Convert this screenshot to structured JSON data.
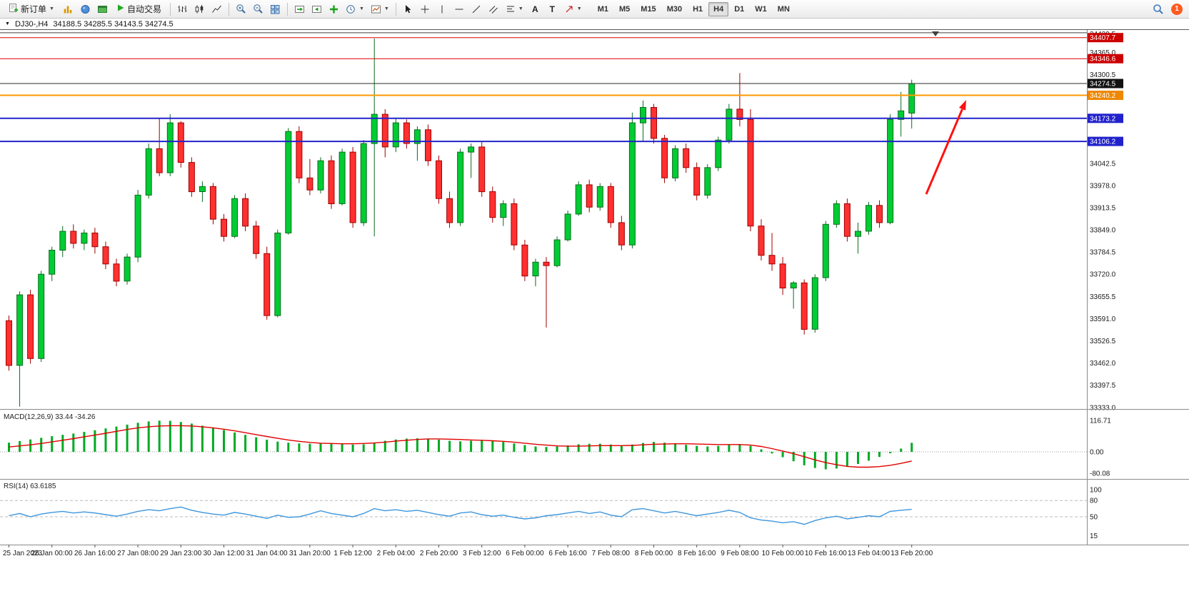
{
  "toolbar": {
    "new_order": "新订单",
    "auto_trading": "自动交易",
    "text_tool": "A",
    "label_tool": "T",
    "timeframes": [
      "M1",
      "M5",
      "M15",
      "M30",
      "H1",
      "H4",
      "D1",
      "W1",
      "MN"
    ],
    "active_timeframe": "H4",
    "notification_count": "1"
  },
  "chart_header": {
    "symbol": "DJ30-,H4",
    "ohlc": "34188.5 34285.5 34143.5 34274.5"
  },
  "chart_data": [
    {
      "type": "candlestick",
      "title": "DJ30-,H4",
      "ohlc_current": {
        "open": 34188.5,
        "high": 34285.5,
        "low": 34143.5,
        "close": 34274.5
      },
      "y_axis_labels": [
        "34429.5",
        "34365.0",
        "34300.5",
        "34236.0",
        "34171.5",
        "34107.0",
        "34042.5",
        "33978.0",
        "33913.5",
        "33849.0",
        "33784.5",
        "33720.0",
        "33655.5",
        "33591.0",
        "33526.5",
        "33462.0",
        "33397.5",
        "33333.0"
      ],
      "x_labels": [
        "25 Jan 2023",
        "26 Jan 00:00",
        "26 Jan 16:00",
        "27 Jan 08:00",
        "29 Jan 23:00",
        "30 Jan 12:00",
        "31 Jan 04:00",
        "31 Jan 20:00",
        "1 Feb 12:00",
        "2 Feb 04:00",
        "2 Feb 20:00",
        "3 Feb 12:00",
        "6 Feb 00:00",
        "6 Feb 16:00",
        "7 Feb 08:00",
        "8 Feb 00:00",
        "8 Feb 16:00",
        "9 Feb 08:00",
        "10 Feb 00:00",
        "10 Feb 16:00",
        "13 Feb 04:00",
        "13 Feb 20:00"
      ],
      "candles": [
        [
          33585,
          33600,
          33440,
          33455
        ],
        [
          33455,
          33670,
          33335,
          33660
        ],
        [
          33660,
          33675,
          33460,
          33475
        ],
        [
          33475,
          33730,
          33465,
          33720
        ],
        [
          33720,
          33800,
          33700,
          33790
        ],
        [
          33790,
          33860,
          33770,
          33845
        ],
        [
          33845,
          33865,
          33795,
          33810
        ],
        [
          33810,
          33850,
          33790,
          33840
        ],
        [
          33840,
          33855,
          33780,
          33800
        ],
        [
          33800,
          33815,
          33735,
          33750
        ],
        [
          33750,
          33765,
          33685,
          33700
        ],
        [
          33700,
          33780,
          33690,
          33770
        ],
        [
          33770,
          33965,
          33755,
          33950
        ],
        [
          33950,
          34100,
          33940,
          34085
        ],
        [
          34085,
          34175,
          34005,
          34015
        ],
        [
          34015,
          34185,
          34005,
          34160
        ],
        [
          34160,
          34165,
          34030,
          34045
        ],
        [
          34045,
          34060,
          33945,
          33960
        ],
        [
          33960,
          33990,
          33930,
          33975
        ],
        [
          33975,
          33985,
          33865,
          33880
        ],
        [
          33880,
          33895,
          33815,
          33830
        ],
        [
          33830,
          33950,
          33825,
          33940
        ],
        [
          33940,
          33955,
          33845,
          33860
        ],
        [
          33860,
          33875,
          33765,
          33780
        ],
        [
          33780,
          33800,
          33588,
          33600
        ],
        [
          33600,
          33850,
          33595,
          33840
        ],
        [
          33840,
          34145,
          33835,
          34135
        ],
        [
          34135,
          34150,
          33985,
          34000
        ],
        [
          34000,
          34055,
          33950,
          33965
        ],
        [
          33965,
          34060,
          33955,
          34050
        ],
        [
          34050,
          34065,
          33910,
          33925
        ],
        [
          33925,
          34085,
          33920,
          34075
        ],
        [
          34075,
          34090,
          33855,
          33870
        ],
        [
          33870,
          34110,
          33860,
          34100
        ],
        [
          34100,
          34405,
          33830,
          34185
        ],
        [
          34185,
          34200,
          34060,
          34090
        ],
        [
          34090,
          34175,
          34075,
          34160
        ],
        [
          34160,
          34170,
          34085,
          34100
        ],
        [
          34100,
          34150,
          34050,
          34140
        ],
        [
          34140,
          34155,
          34035,
          34050
        ],
        [
          34050,
          34065,
          33925,
          33940
        ],
        [
          33940,
          33960,
          33855,
          33870
        ],
        [
          33870,
          34085,
          33860,
          34075
        ],
        [
          34075,
          34100,
          34000,
          34090
        ],
        [
          34090,
          34105,
          33945,
          33960
        ],
        [
          33960,
          33975,
          33870,
          33885
        ],
        [
          33885,
          33935,
          33860,
          33925
        ],
        [
          33925,
          33940,
          33790,
          33805
        ],
        [
          33805,
          33820,
          33700,
          33715
        ],
        [
          33715,
          33765,
          33685,
          33755
        ],
        [
          33755,
          33770,
          33565,
          33745
        ],
        [
          33745,
          33830,
          33740,
          33820
        ],
        [
          33820,
          33905,
          33815,
          33895
        ],
        [
          33895,
          33990,
          33890,
          33980
        ],
        [
          33980,
          33995,
          33900,
          33915
        ],
        [
          33915,
          33985,
          33905,
          33975
        ],
        [
          33975,
          33985,
          33855,
          33870
        ],
        [
          33870,
          33890,
          33790,
          33805
        ],
        [
          33805,
          34190,
          33795,
          34160
        ],
        [
          34160,
          34225,
          34105,
          34205
        ],
        [
          34205,
          34215,
          34100,
          34115
        ],
        [
          34115,
          34125,
          33985,
          34000
        ],
        [
          34000,
          34095,
          33990,
          34085
        ],
        [
          34085,
          34100,
          34015,
          34030
        ],
        [
          34030,
          34045,
          33935,
          33950
        ],
        [
          33950,
          34040,
          33940,
          34030
        ],
        [
          34030,
          34120,
          34020,
          34110
        ],
        [
          34110,
          34215,
          34100,
          34200
        ],
        [
          34200,
          34305,
          34150,
          34170
        ],
        [
          34170,
          34200,
          33845,
          33860
        ],
        [
          33860,
          33880,
          33760,
          33775
        ],
        [
          33775,
          33840,
          33730,
          33750
        ],
        [
          33750,
          33770,
          33660,
          33680
        ],
        [
          33680,
          33700,
          33620,
          33695
        ],
        [
          33695,
          33705,
          33545,
          33560
        ],
        [
          33560,
          33720,
          33550,
          33710
        ],
        [
          33710,
          33875,
          33700,
          33865
        ],
        [
          33865,
          33935,
          33855,
          33925
        ],
        [
          33925,
          33940,
          33815,
          33830
        ],
        [
          33830,
          33870,
          33780,
          33845
        ],
        [
          33845,
          33930,
          33835,
          33920
        ],
        [
          33920,
          33935,
          33855,
          33870
        ],
        [
          33870,
          34185,
          33865,
          34170
        ],
        [
          34170,
          34250,
          34120,
          34195
        ],
        [
          34188.5,
          34285.5,
          34143.5,
          34274.5
        ]
      ],
      "levels": [
        {
          "price": 34422.0,
          "color": "#404040",
          "width": 1,
          "label": null,
          "tag_bg": null
        },
        {
          "price": 34407.7,
          "color": "#DD0000",
          "width": 1,
          "label": "34407.7",
          "tag_bg": "#CC0000"
        },
        {
          "price": 34346.6,
          "color": "#DD0000",
          "width": 1,
          "label": "34346.6",
          "tag_bg": "#CC0000"
        },
        {
          "price": 34274.5,
          "color": "#2b2b2b",
          "width": 1,
          "label": "34274.5",
          "tag_bg": "#111111"
        },
        {
          "price": 34240.2,
          "color": "#FF9900",
          "width": 2,
          "label": "34240.2",
          "tag_bg": "#EE8800"
        },
        {
          "price": 34173.2,
          "color": "#2222CC",
          "width": 2,
          "label": "34173.2",
          "tag_bg": "#2222CC"
        },
        {
          "price": 34106.2,
          "color": "#2222CC",
          "width": 2,
          "label": "34106.2",
          "tag_bg": "#2222CC"
        }
      ],
      "arrow": {
        "from": [
          1297,
          272
        ],
        "to": [
          1353,
          140
        ],
        "color": "#FF1111",
        "width": 3
      },
      "colors": {
        "up": "#00CC33",
        "up_border": "#0B6B1F",
        "down": "#FF3030",
        "down_border": "#A00000"
      }
    },
    {
      "type": "bar+line",
      "name": "MACD",
      "label": "MACD(12,26,9) 33.44 -34.26",
      "y_labels": [
        "116.71",
        "0.00",
        "-80.08"
      ],
      "histogram": [
        34,
        40,
        46,
        52,
        58,
        63,
        68,
        74,
        80,
        87,
        94,
        101,
        108,
        113,
        116,
        115,
        111,
        105,
        97,
        89,
        81,
        72,
        63,
        54,
        45,
        38,
        34,
        31,
        30,
        31,
        32,
        30,
        27,
        28,
        34,
        41,
        46,
        49,
        50,
        48,
        45,
        41,
        39,
        41,
        43,
        41,
        37,
        31,
        25,
        20,
        18,
        20,
        24,
        28,
        30,
        30,
        27,
        23,
        27,
        33,
        37,
        34,
        30,
        26,
        22,
        20,
        22,
        27,
        29,
        22,
        9,
        -6,
        -20,
        -35,
        -50,
        -60,
        -65,
        -62,
        -55,
        -45,
        -33,
        -19,
        -5,
        12,
        33.44
      ],
      "signal": [
        18,
        22,
        26,
        31,
        37,
        43,
        49,
        56,
        62,
        69,
        76,
        83,
        89,
        93,
        96,
        97,
        97,
        96,
        93,
        89,
        84,
        78,
        71,
        64,
        57,
        50,
        44,
        39,
        35,
        32,
        31,
        30,
        30,
        31,
        33,
        36,
        40,
        43,
        46,
        48,
        48,
        47,
        46,
        44,
        43,
        41,
        39,
        36,
        32,
        28,
        25,
        22,
        21,
        21,
        22,
        23,
        23,
        23,
        24,
        26,
        28,
        29,
        30,
        30,
        29,
        28,
        27,
        27,
        27,
        25,
        20,
        12,
        3,
        -7,
        -18,
        -30,
        -40,
        -48,
        -54,
        -57,
        -57,
        -55,
        -50,
        -43,
        -34.26
      ],
      "colors": {
        "histogram": "#00AA22",
        "signal": "#E00000"
      }
    },
    {
      "type": "line",
      "name": "RSI",
      "label": "RSI(14) 63.6185",
      "y_labels": [
        "100",
        "80",
        "50",
        "15"
      ],
      "levels": [
        80,
        50
      ],
      "values": [
        52,
        56,
        50,
        55,
        58,
        60,
        57,
        59,
        57,
        54,
        51,
        55,
        60,
        63,
        61,
        65,
        68,
        62,
        58,
        55,
        53,
        58,
        55,
        51,
        47,
        53,
        49,
        50,
        55,
        61,
        56,
        53,
        50,
        56,
        65,
        61,
        63,
        60,
        62,
        58,
        54,
        51,
        57,
        59,
        54,
        51,
        53,
        49,
        46,
        48,
        52,
        54,
        57,
        60,
        56,
        59,
        53,
        50,
        63,
        65,
        61,
        57,
        60,
        56,
        52,
        55,
        58,
        62,
        58,
        48,
        44,
        42,
        39,
        41,
        36,
        43,
        48,
        51,
        46,
        49,
        52,
        50,
        60,
        62,
        63.62
      ],
      "color": "#3E96DC"
    }
  ]
}
